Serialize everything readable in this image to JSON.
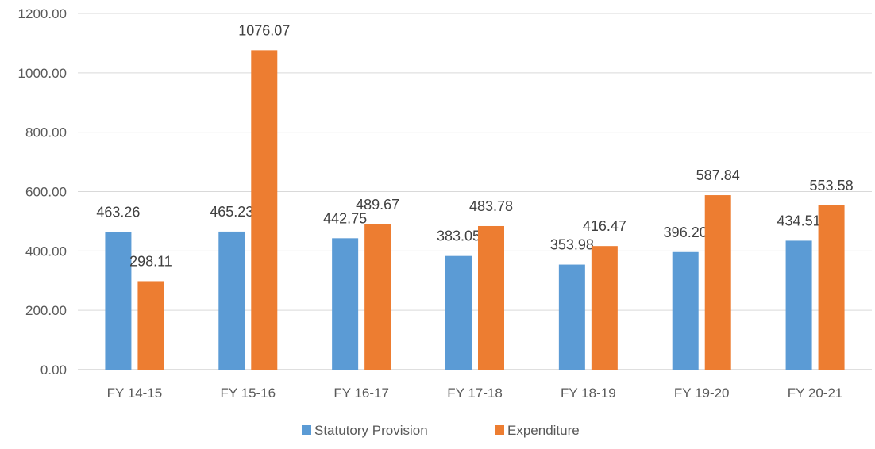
{
  "chart_data": {
    "type": "bar",
    "categories": [
      "FY 14-15",
      "FY 15-16",
      "FY 16-17",
      "FY 17-18",
      "FY 18-19",
      "FY 19-20",
      "FY 20-21"
    ],
    "series": [
      {
        "name": "Statutory Provision",
        "color": "#5b9bd5",
        "values": [
          463.26,
          465.23,
          442.75,
          383.05,
          353.98,
          396.2,
          434.51
        ],
        "labels": [
          "463.26",
          "465.23",
          "442.75",
          "383.05",
          "353.98",
          "396.20",
          "434.51"
        ]
      },
      {
        "name": "Expenditure",
        "color": "#ed7d31",
        "values": [
          298.11,
          1076.07,
          489.67,
          483.78,
          416.47,
          587.84,
          553.58
        ],
        "labels": [
          "298.11",
          "1076.07",
          "489.67",
          "483.78",
          "416.47",
          "587.84",
          "553.58"
        ]
      }
    ],
    "ylim": [
      0,
      1200
    ],
    "yticks": [
      "0.00",
      "200.00",
      "400.00",
      "600.00",
      "800.00",
      "1000.00",
      "1200.00"
    ],
    "grid": true,
    "legend": "bottom-center",
    "title": "",
    "xlabel": "",
    "ylabel": ""
  }
}
